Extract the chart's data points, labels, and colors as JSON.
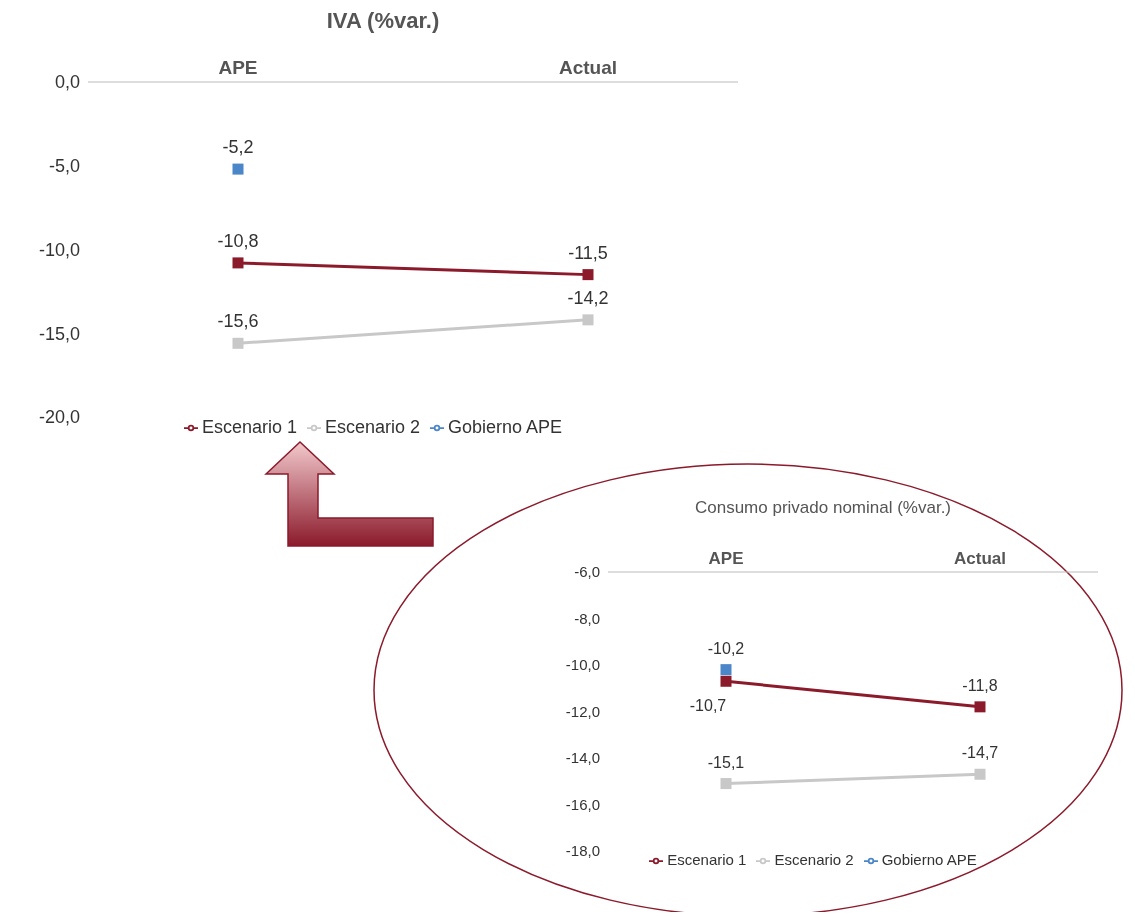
{
  "chart_data": [
    {
      "type": "line",
      "title": "IVA (%var.)",
      "categories": [
        "APE",
        "Actual"
      ],
      "ylim": [
        -20,
        0
      ],
      "yticks": [
        {
          "value": 0,
          "label": "0,0"
        },
        {
          "value": -5,
          "label": "-5,0"
        },
        {
          "value": -10,
          "label": "-10,0"
        },
        {
          "value": -15,
          "label": "-15,0"
        },
        {
          "value": -20,
          "label": "-20,0"
        }
      ],
      "marker": "square",
      "legend": "bottom",
      "series": [
        {
          "name": "Escenario 1",
          "color": "#8b1a2b",
          "values": [
            -10.8,
            -11.5
          ],
          "value_labels": [
            "-10,8",
            "-11,5"
          ]
        },
        {
          "name": "Escenario 2",
          "color": "#c8c8c8",
          "values": [
            -15.6,
            -14.2
          ],
          "value_labels": [
            "-15,6",
            "-14,2"
          ]
        },
        {
          "name": "Gobierno APE",
          "color": "#4a86c8",
          "values": [
            -5.2,
            null
          ],
          "value_labels": [
            "-5,2",
            null
          ]
        }
      ]
    },
    {
      "type": "line",
      "title": "Consumo privado nominal (%var.)",
      "categories": [
        "APE",
        "Actual"
      ],
      "ylim": [
        -18,
        -6
      ],
      "yticks": [
        {
          "value": -6,
          "label": "-6,0"
        },
        {
          "value": -8,
          "label": "-8,0"
        },
        {
          "value": -10,
          "label": "-10,0"
        },
        {
          "value": -12,
          "label": "-12,0"
        },
        {
          "value": -14,
          "label": "-14,0"
        },
        {
          "value": -16,
          "label": "-16,0"
        },
        {
          "value": -18,
          "label": "-18,0"
        }
      ],
      "marker": "square",
      "legend": "bottom",
      "series": [
        {
          "name": "Escenario 1",
          "color": "#8b1a2b",
          "values": [
            -10.7,
            -11.8
          ],
          "value_labels": [
            "-10,7",
            "-11,8"
          ]
        },
        {
          "name": "Escenario 2",
          "color": "#c8c8c8",
          "values": [
            -15.1,
            -14.7
          ],
          "value_labels": [
            "-15,1",
            "-14,7"
          ]
        },
        {
          "name": "Gobierno APE",
          "color": "#4a86c8",
          "values": [
            -10.2,
            null
          ],
          "value_labels": [
            "-10,2",
            null
          ]
        }
      ]
    }
  ]
}
